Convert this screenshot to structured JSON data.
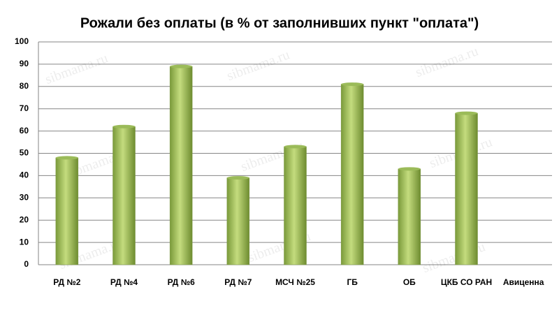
{
  "chart_data": {
    "type": "bar",
    "title": "Рожали без оплаты (в % от заполнивших пункт \"оплата\")",
    "categories": [
      "РД №2",
      "РД №4",
      "РД №6",
      "РД №7",
      "МСЧ №25",
      "ГБ",
      "ОБ",
      "ЦКБ СО РАН",
      "Авиценна"
    ],
    "values": [
      48,
      62,
      89,
      39,
      53,
      81,
      43,
      68,
      0
    ],
    "color": "#9bbb59",
    "ylim": [
      0,
      100
    ],
    "yticks": [
      0,
      10,
      20,
      30,
      40,
      50,
      60,
      70,
      80,
      90,
      100
    ],
    "grid": true,
    "watermark": "sibmama.ru"
  }
}
